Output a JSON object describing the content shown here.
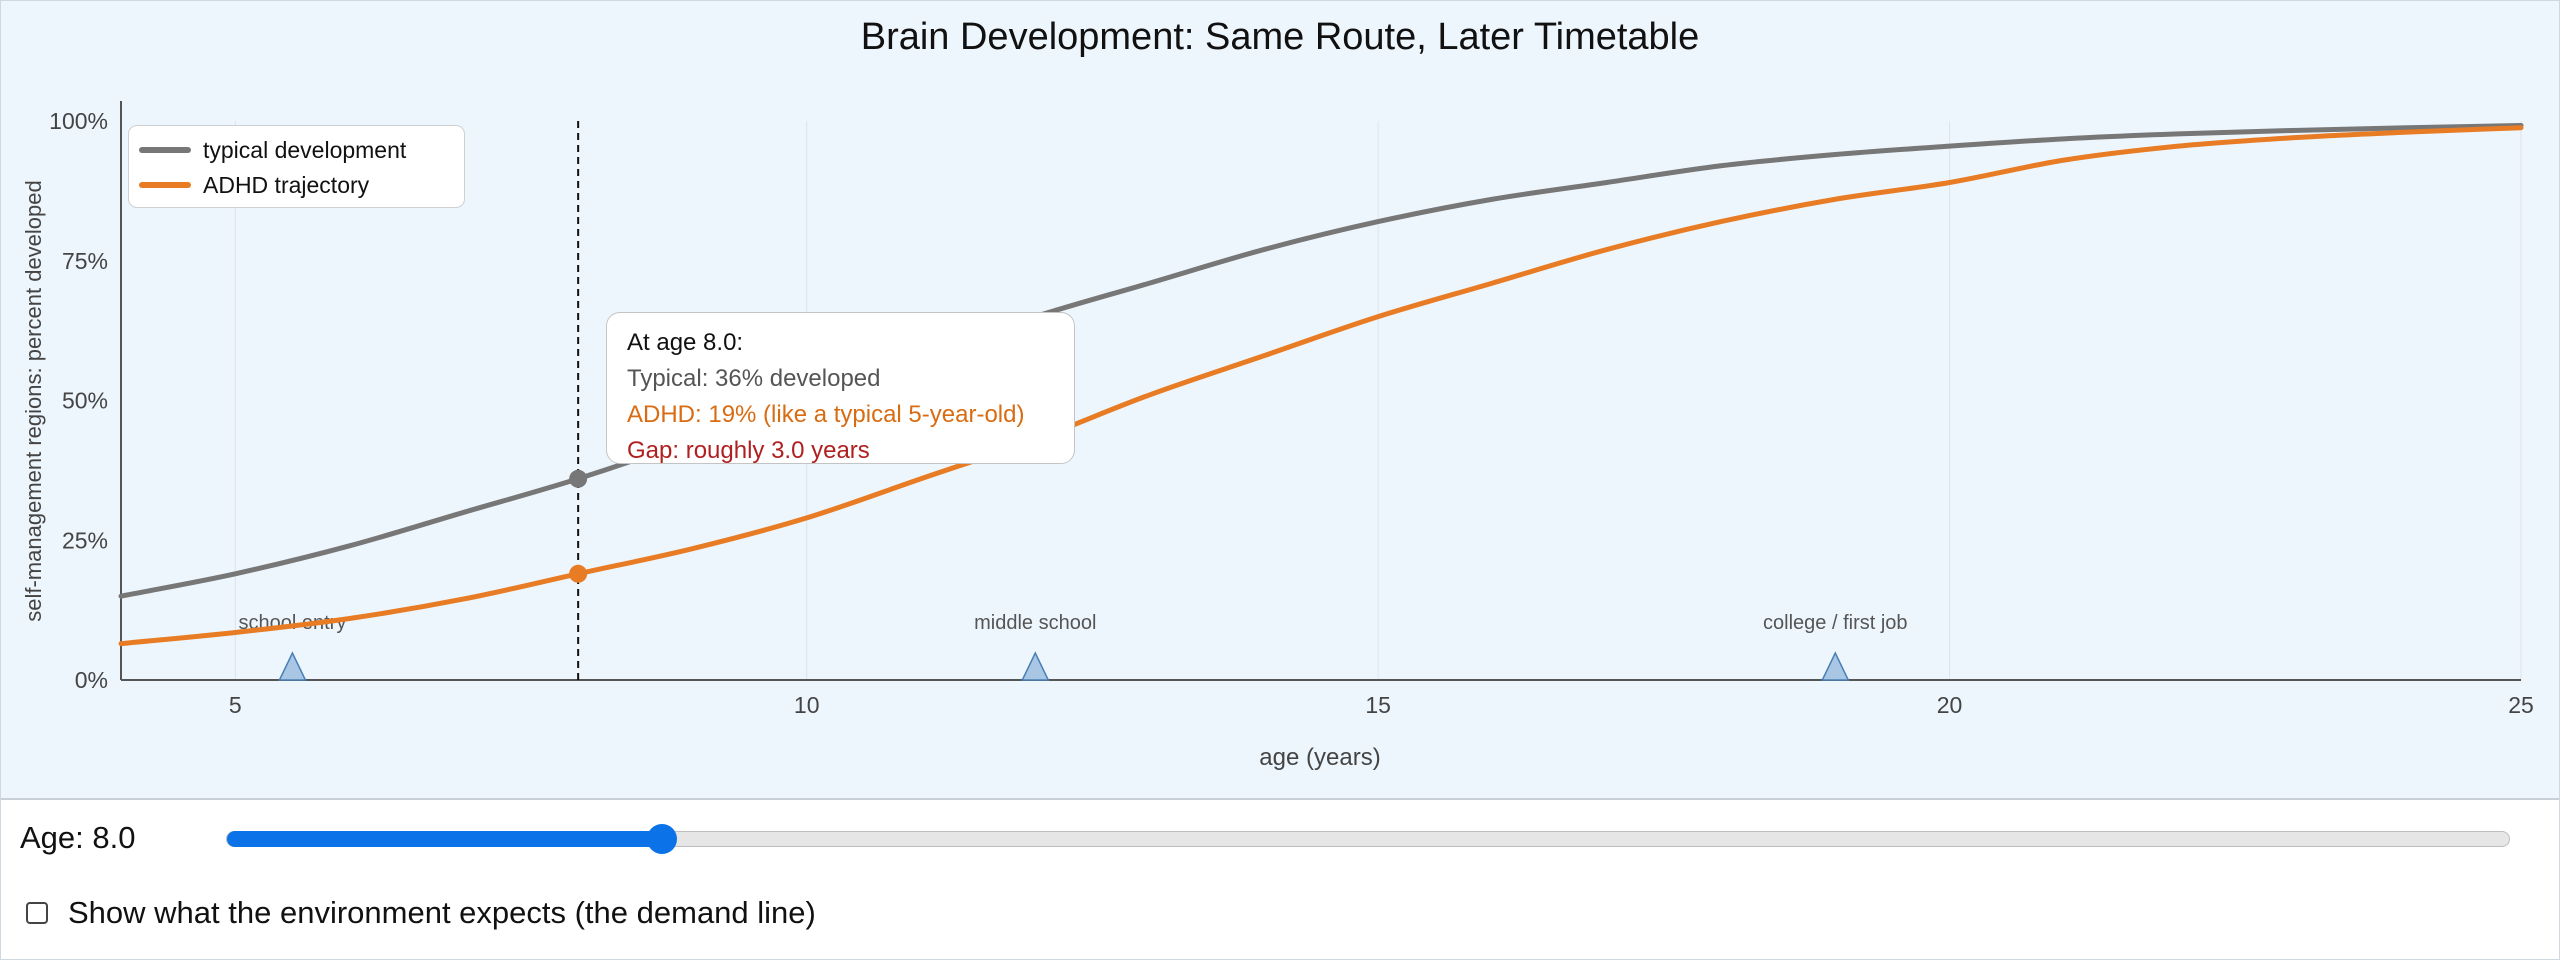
{
  "chart_data": {
    "type": "line",
    "title": "Brain Development: Same Route, Later Timetable",
    "xlabel": "age (years)",
    "ylabel": "self-management regions: percent developed",
    "xlim": [
      4,
      25
    ],
    "ylim": [
      0,
      100
    ],
    "x_ticks": [
      "5",
      "10",
      "15",
      "20",
      "25"
    ],
    "y_ticks": [
      "0%",
      "25%",
      "50%",
      "75%",
      "100%"
    ],
    "grid": "vertical",
    "legend_position": "top-left",
    "series": [
      {
        "name": "typical development",
        "color": "#777777",
        "x": [
          4,
          5,
          6,
          7,
          8,
          9,
          10,
          11,
          12,
          13,
          14,
          15,
          16,
          17,
          18,
          19,
          20,
          21,
          22,
          23,
          24,
          25
        ],
        "y": [
          15,
          19,
          24,
          30,
          36,
          43,
          51,
          58,
          65,
          71,
          77,
          82,
          86,
          89,
          92,
          94,
          95.5,
          96.8,
          97.7,
          98.3,
          98.8,
          99.2
        ]
      },
      {
        "name": "ADHD trajectory",
        "color": "#e87c24",
        "x": [
          4,
          5,
          6,
          7,
          8,
          9,
          10,
          11,
          12,
          13,
          14,
          15,
          16,
          17,
          18,
          19,
          20,
          21,
          22,
          23,
          24,
          25
        ],
        "y": [
          6.5,
          8.5,
          11,
          14.5,
          19,
          23.5,
          29,
          36,
          43,
          51,
          58,
          65,
          71,
          77,
          82,
          86,
          89,
          93,
          95.5,
          97,
          98,
          98.8
        ]
      }
    ],
    "milestones": [
      {
        "label": "school entry",
        "age": 5.5
      },
      {
        "label": "middle school",
        "age": 12
      },
      {
        "label": "college / first job",
        "age": 19
      }
    ],
    "marker_age": 8.0,
    "marker_values": {
      "typical": 36,
      "adhd": 19
    }
  },
  "tooltip": {
    "title": "At age 8.0:",
    "typical": "Typical: 36% developed",
    "adhd": "ADHD: 19%  (like a typical 5-year-old)",
    "gap": "Gap: roughly 3.0 years"
  },
  "controls": {
    "age_label": "Age: 8.0",
    "age_value": 8.0,
    "age_min": 4,
    "age_max": 25,
    "demand_checkbox_label": "Show what the environment expects (the demand line)",
    "demand_checked": false
  },
  "colors": {
    "typical": "#777777",
    "adhd": "#e87c24",
    "gap": "#b02020",
    "accent": "#0b72e7",
    "milestone": "#a9c6e4"
  }
}
